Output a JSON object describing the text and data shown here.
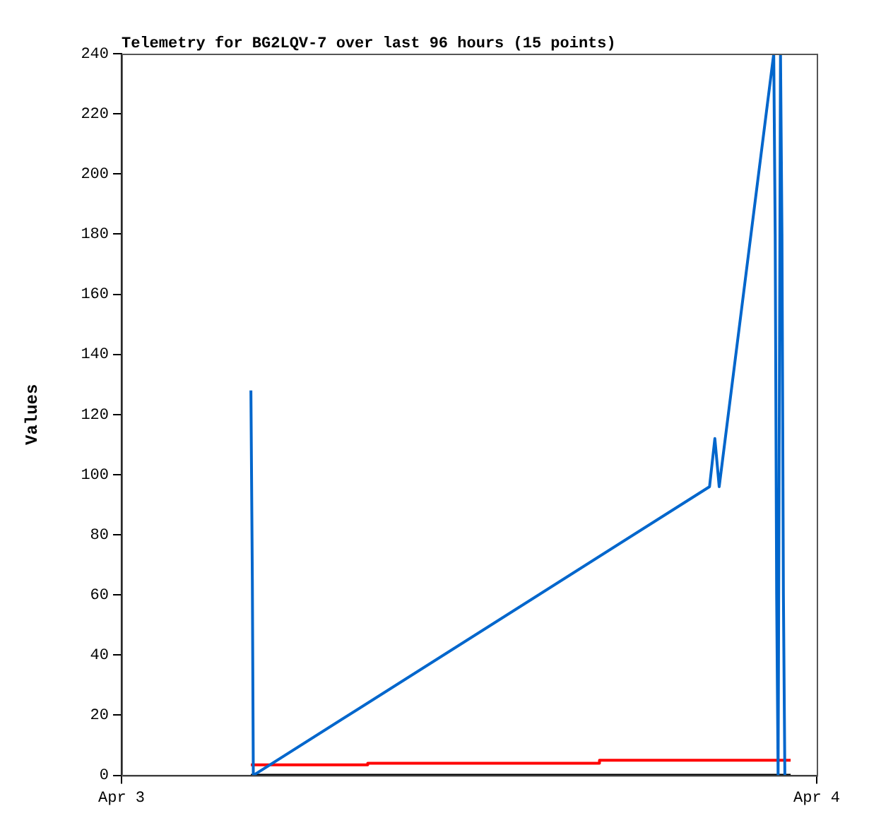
{
  "chart_data": {
    "type": "line",
    "title": "Telemetry for BG2LQV-7 over last 96 hours (15 points)",
    "ylabel": "Values",
    "xlim": [
      "--04-03",
      "--04-04"
    ],
    "xticks": [
      {
        "value": "--04-03",
        "label": "Apr 3"
      },
      {
        "value": "--04-04",
        "label": "Apr 4"
      }
    ],
    "ylim": [
      0,
      240
    ],
    "yticks": [
      0,
      20,
      40,
      60,
      80,
      100,
      120,
      140,
      160,
      180,
      200,
      220,
      240
    ],
    "grid": false,
    "legend": false,
    "marker": "none",
    "line_style": "solid",
    "series": [
      {
        "color": "#000000",
        "x": [
          "--04-03T04:28",
          "--04-03T23:06"
        ],
        "values": [
          0,
          0
        ]
      },
      {
        "type": "step",
        "color": "#ff0000",
        "x": [
          "--04-03T04:28",
          "--04-03T08:30",
          "--04-03T16:30",
          "--04-03T23:06"
        ],
        "values": [
          3.5,
          4,
          5,
          5
        ]
      },
      {
        "color": "#0066cc",
        "x": [
          "--04-03T04:28",
          "--04-03T04:31",
          "--04-03T04:33",
          "--04-03T20:18",
          "--04-03T20:29",
          "--04-03T20:38",
          "--04-03T22:31",
          "--04-03T22:34",
          "--04-03T22:37",
          "--04-03T22:40",
          "--04-03T22:45",
          "--04-03T22:48",
          "--04-03T22:51",
          "--04-03T22:54"
        ],
        "values": [
          128,
          65,
          0,
          96,
          112,
          96,
          240,
          180,
          60,
          0,
          240,
          180,
          60,
          0
        ]
      }
    ]
  }
}
